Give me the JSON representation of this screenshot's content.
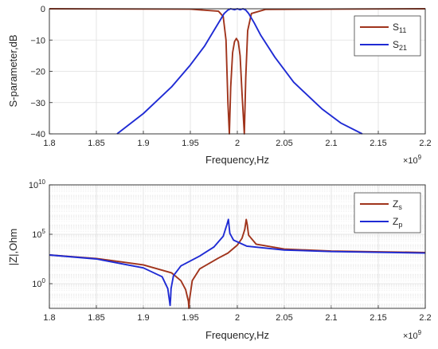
{
  "chart_data": [
    {
      "type": "line",
      "xlabel": "Frequency,Hz",
      "ylabel": "S-parameter,dB",
      "x_exponent_base": "×10",
      "x_exponent_power": "9",
      "xlim": [
        1.8,
        2.2
      ],
      "ylim": [
        -40,
        0
      ],
      "x_ticks": [
        "1.8",
        "1.85",
        "1.9",
        "1.95",
        "2",
        "2.05",
        "2.1",
        "2.15",
        "2.2"
      ],
      "y_ticks": [
        "0",
        "−10",
        "−20",
        "−30",
        "−40"
      ],
      "grid": true,
      "legend_position": "top-right",
      "series": [
        {
          "name": "S",
          "name_sub": "11",
          "color": "#a0341c",
          "x": [
            1.8,
            1.95,
            1.98,
            1.985,
            1.988,
            1.99,
            1.9915,
            1.993,
            1.995,
            1.997,
            1.999,
            2.001,
            2.003,
            2.005,
            2.0075,
            2.009,
            2.011,
            2.015,
            2.03,
            2.2
          ],
          "y": [
            0,
            -0.1,
            -0.8,
            -2.5,
            -10,
            -30,
            -40,
            -25,
            -14,
            -10.5,
            -9.5,
            -10.5,
            -15,
            -27,
            -40,
            -22,
            -7,
            -1.5,
            -0.2,
            0
          ]
        },
        {
          "name": "S",
          "name_sub": "21",
          "color": "#1f2bd4",
          "x": [
            1.872,
            1.9,
            1.93,
            1.95,
            1.965,
            1.975,
            1.982,
            1.986,
            1.99,
            1.993,
            1.997,
            2.0,
            2.003,
            2.006,
            2.009,
            2.012,
            2.018,
            2.025,
            2.04,
            2.06,
            2.09,
            2.11,
            2.133
          ],
          "y": [
            -40,
            -33.5,
            -25,
            -18,
            -12,
            -7,
            -3.5,
            -1.5,
            -0.4,
            0,
            -0.3,
            0,
            -0.3,
            0,
            -0.4,
            -1.5,
            -4.5,
            -8.5,
            -15.5,
            -23.5,
            -32,
            -36.5,
            -40
          ]
        }
      ]
    },
    {
      "type": "line",
      "xlabel": "Frequency,Hz",
      "ylabel": "|Z|,Ohm",
      "x_exponent_base": "×10",
      "x_exponent_power": "9",
      "y_scale": "log",
      "xlim": [
        1.8,
        2.2
      ],
      "ylim_log10": [
        -2.5,
        10
      ],
      "x_ticks": [
        "1.8",
        "1.85",
        "1.9",
        "1.95",
        "2",
        "2.05",
        "2.1",
        "2.15",
        "2.2"
      ],
      "y_ticks": [
        {
          "base": "10",
          "exp": "10",
          "log": 10
        },
        {
          "base": "10",
          "exp": "5",
          "log": 5
        },
        {
          "base": "10",
          "exp": "0",
          "log": 0
        }
      ],
      "grid": true,
      "legend_position": "top-right",
      "series": [
        {
          "name": "Z",
          "name_sub": "s",
          "color": "#a0341c",
          "x": [
            1.8,
            1.85,
            1.9,
            1.93,
            1.94,
            1.945,
            1.948,
            1.9485,
            1.949,
            1.952,
            1.96,
            1.98,
            1.99,
            2.0,
            2.005,
            2.008,
            2.0095,
            2.0105,
            2.012,
            2.02,
            2.05,
            2.1,
            2.2
          ],
          "y_log10": [
            2.9,
            2.55,
            1.9,
            1.1,
            0.3,
            -0.6,
            -1.8,
            -2.5,
            -1.7,
            0.3,
            1.5,
            2.6,
            3.1,
            3.9,
            4.6,
            5.5,
            6.5,
            6.0,
            4.9,
            4.0,
            3.5,
            3.3,
            3.15
          ]
        },
        {
          "name": "Z",
          "name_sub": "p",
          "color": "#1f2bd4",
          "x": [
            1.8,
            1.85,
            1.9,
            1.92,
            1.926,
            1.9285,
            1.929,
            1.9295,
            1.932,
            1.94,
            1.96,
            1.975,
            1.985,
            1.989,
            1.9905,
            1.992,
            1.996,
            2.01,
            2.05,
            2.1,
            2.2
          ],
          "y_log10": [
            2.9,
            2.5,
            1.6,
            0.7,
            -0.5,
            -2.2,
            -1.5,
            -0.5,
            0.8,
            1.8,
            2.8,
            3.7,
            4.8,
            6.0,
            6.5,
            5.1,
            4.4,
            3.8,
            3.4,
            3.25,
            3.1
          ]
        }
      ]
    }
  ]
}
